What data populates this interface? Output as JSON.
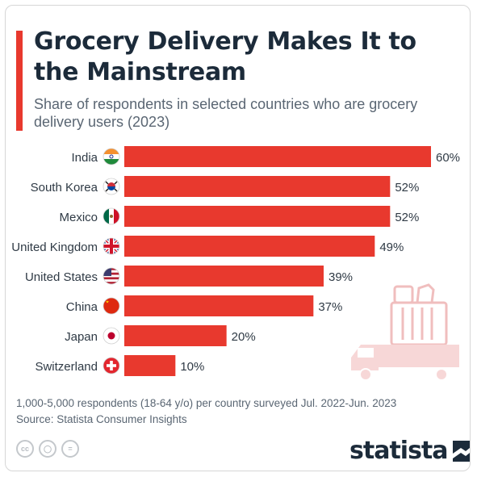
{
  "header": {
    "title": "Grocery Delivery Makes It to the Mainstream",
    "subtitle": "Share of respondents in selected countries who are grocery delivery users (2023)"
  },
  "colors": {
    "bar": "#e8392e",
    "accent": "#e8392e",
    "title": "#1c2b3a",
    "text": "#3c4650"
  },
  "chart_data": {
    "type": "bar",
    "orientation": "horizontal",
    "categories": [
      "India",
      "South Korea",
      "Mexico",
      "United Kingdom",
      "United States",
      "China",
      "Japan",
      "Switzerland"
    ],
    "values": [
      60,
      52,
      52,
      49,
      39,
      37,
      20,
      10
    ],
    "value_labels": [
      "60%",
      "52%",
      "52%",
      "49%",
      "39%",
      "37%",
      "20%",
      "10%"
    ],
    "flags": [
      "india-flag-icon",
      "south-korea-flag-icon",
      "mexico-flag-icon",
      "united-kingdom-flag-icon",
      "united-states-flag-icon",
      "china-flag-icon",
      "japan-flag-icon",
      "switzerland-flag-icon"
    ],
    "unit": "%",
    "xlim": [
      0,
      60
    ],
    "grid": false,
    "legend": "none"
  },
  "decoration": {
    "icon": "grocery-delivery-truck-icon"
  },
  "footer": {
    "note": "1,000-5,000 respondents (18-64 y/o) per country surveyed Jul. 2022-Jun. 2023",
    "source": "Source: Statista Consumer Insights",
    "license_icons": [
      "cc-icon",
      "attribution-icon",
      "no-derivatives-icon"
    ],
    "brand": "statista"
  }
}
